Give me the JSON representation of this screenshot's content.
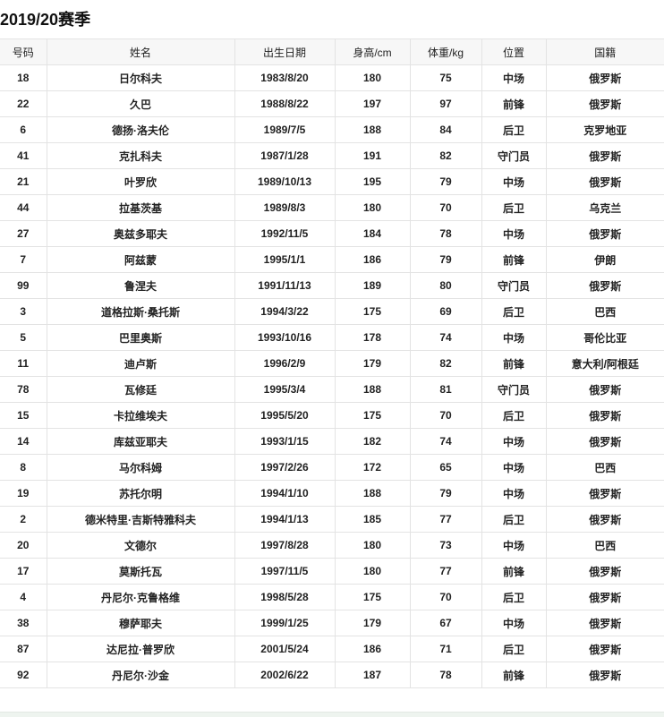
{
  "title": "2019/20赛季",
  "columns": [
    "号码",
    "姓名",
    "出生日期",
    "身高/cm",
    "体重/kg",
    "位置",
    "国籍"
  ],
  "rows": [
    [
      "18",
      "日尔科夫",
      "1983/8/20",
      "180",
      "75",
      "中场",
      "俄罗斯"
    ],
    [
      "22",
      "久巴",
      "1988/8/22",
      "197",
      "97",
      "前锋",
      "俄罗斯"
    ],
    [
      "6",
      "德扬·洛夫伦",
      "1989/7/5",
      "188",
      "84",
      "后卫",
      "克罗地亚"
    ],
    [
      "41",
      "克扎科夫",
      "1987/1/28",
      "191",
      "82",
      "守门员",
      "俄罗斯"
    ],
    [
      "21",
      "叶罗欣",
      "1989/10/13",
      "195",
      "79",
      "中场",
      "俄罗斯"
    ],
    [
      "44",
      "拉基茨基",
      "1989/8/3",
      "180",
      "70",
      "后卫",
      "乌克兰"
    ],
    [
      "27",
      "奥兹多耶夫",
      "1992/11/5",
      "184",
      "78",
      "中场",
      "俄罗斯"
    ],
    [
      "7",
      "阿兹蒙",
      "1995/1/1",
      "186",
      "79",
      "前锋",
      "伊朗"
    ],
    [
      "99",
      "鲁涅夫",
      "1991/11/13",
      "189",
      "80",
      "守门员",
      "俄罗斯"
    ],
    [
      "3",
      "道格拉斯·桑托斯",
      "1994/3/22",
      "175",
      "69",
      "后卫",
      "巴西"
    ],
    [
      "5",
      "巴里奥斯",
      "1993/10/16",
      "178",
      "74",
      "中场",
      "哥伦比亚"
    ],
    [
      "11",
      "迪卢斯",
      "1996/2/9",
      "179",
      "82",
      "前锋",
      "意大利/阿根廷"
    ],
    [
      "78",
      "瓦修廷",
      "1995/3/4",
      "188",
      "81",
      "守门员",
      "俄罗斯"
    ],
    [
      "15",
      "卡拉维埃夫",
      "1995/5/20",
      "175",
      "70",
      "后卫",
      "俄罗斯"
    ],
    [
      "14",
      "库兹亚耶夫",
      "1993/1/15",
      "182",
      "74",
      "中场",
      "俄罗斯"
    ],
    [
      "8",
      "马尔科姆",
      "1997/2/26",
      "172",
      "65",
      "中场",
      "巴西"
    ],
    [
      "19",
      "苏托尔明",
      "1994/1/10",
      "188",
      "79",
      "中场",
      "俄罗斯"
    ],
    [
      "2",
      "德米特里·吉斯特雅科夫",
      "1994/1/13",
      "185",
      "77",
      "后卫",
      "俄罗斯"
    ],
    [
      "20",
      "文德尔",
      "1997/8/28",
      "180",
      "73",
      "中场",
      "巴西"
    ],
    [
      "17",
      "莫斯托瓦",
      "1997/11/5",
      "180",
      "77",
      "前锋",
      "俄罗斯"
    ],
    [
      "4",
      "丹尼尔·克鲁格维",
      "1998/5/28",
      "175",
      "70",
      "后卫",
      "俄罗斯"
    ],
    [
      "38",
      "穆萨耶夫",
      "1999/1/25",
      "179",
      "67",
      "中场",
      "俄罗斯"
    ],
    [
      "87",
      "达尼拉·普罗欣",
      "2001/5/24",
      "186",
      "71",
      "后卫",
      "俄罗斯"
    ],
    [
      "92",
      "丹尼尔·沙金",
      "2002/6/22",
      "187",
      "78",
      "前锋",
      "俄罗斯"
    ]
  ]
}
